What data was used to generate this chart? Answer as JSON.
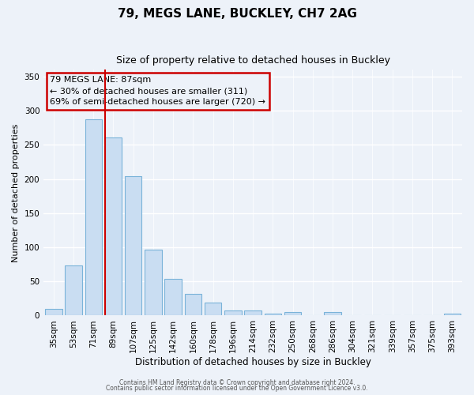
{
  "title": "79, MEGS LANE, BUCKLEY, CH7 2AG",
  "subtitle": "Size of property relative to detached houses in Buckley",
  "xlabel": "Distribution of detached houses by size in Buckley",
  "ylabel": "Number of detached properties",
  "bar_labels": [
    "35sqm",
    "53sqm",
    "71sqm",
    "89sqm",
    "107sqm",
    "125sqm",
    "142sqm",
    "160sqm",
    "178sqm",
    "196sqm",
    "214sqm",
    "232sqm",
    "250sqm",
    "268sqm",
    "286sqm",
    "304sqm",
    "321sqm",
    "339sqm",
    "357sqm",
    "375sqm",
    "393sqm"
  ],
  "bar_values": [
    10,
    73,
    287,
    261,
    204,
    96,
    54,
    32,
    19,
    8,
    8,
    3,
    5,
    0,
    5,
    0,
    0,
    0,
    0,
    0,
    3
  ],
  "bar_color": "#c9ddf2",
  "bar_edge_color": "#7ab3d9",
  "vline_color": "#cc0000",
  "ylim": [
    0,
    360
  ],
  "yticks": [
    0,
    50,
    100,
    150,
    200,
    250,
    300,
    350
  ],
  "annotation_title": "79 MEGS LANE: 87sqm",
  "annotation_line1": "← 30% of detached houses are smaller (311)",
  "annotation_line2": "69% of semi-detached houses are larger (720) →",
  "box_color": "#cc0000",
  "footer1": "Contains HM Land Registry data © Crown copyright and database right 2024.",
  "footer2": "Contains public sector information licensed under the Open Government Licence v3.0.",
  "background_color": "#edf2f9",
  "grid_color": "#ffffff",
  "title_fontsize": 11,
  "subtitle_fontsize": 9,
  "ylabel_fontsize": 8,
  "xlabel_fontsize": 8.5,
  "tick_fontsize": 7.5
}
